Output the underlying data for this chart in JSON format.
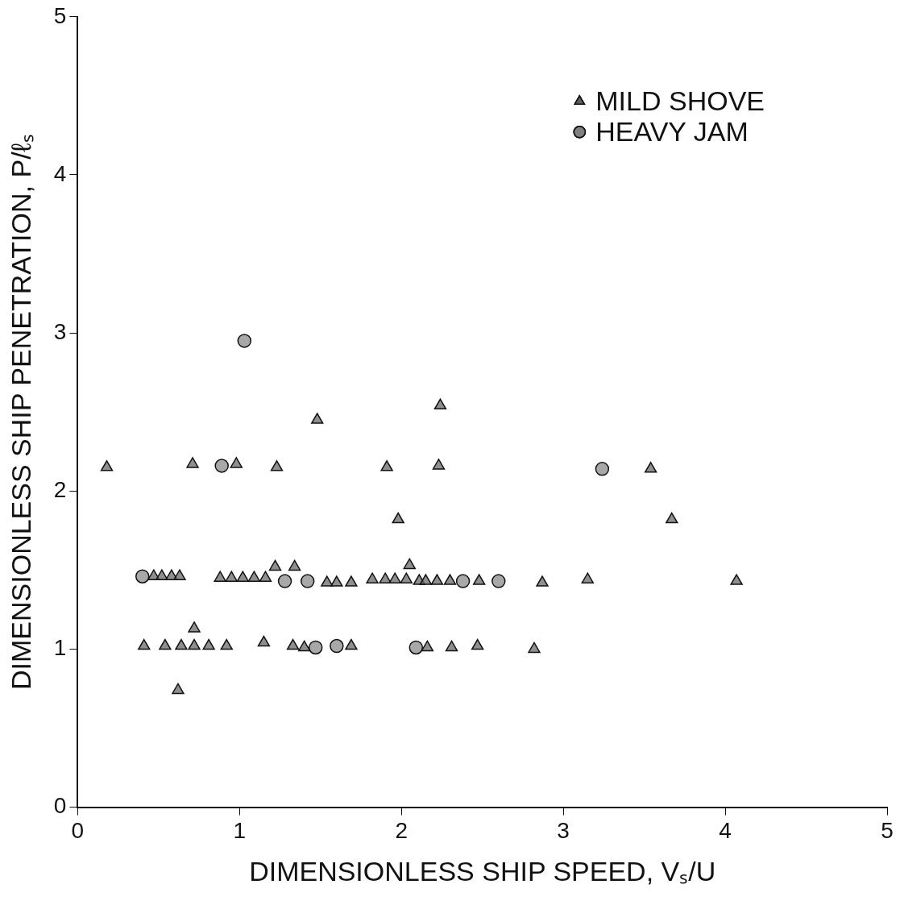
{
  "chart_data": {
    "type": "scatter",
    "xlabel": "DIMENSIONLESS SHIP SPEED, Vₛ/U",
    "ylabel": "DIMENSIONLESS SHIP PENETRATION, P/ℓₛ",
    "xlim": [
      0,
      5
    ],
    "xticks": [
      0,
      1,
      2,
      3,
      4,
      5
    ],
    "ylim": [
      0,
      5
    ],
    "yticks": [
      0,
      1,
      2,
      3,
      4,
      5
    ],
    "grid": false,
    "legend": "top right",
    "series": [
      {
        "name": "MILD SHOVE",
        "color": "#666666",
        "marker": "triangle",
        "x": [
          0.18,
          0.71,
          0.98,
          1.23,
          1.91,
          2.23,
          3.54,
          1.48,
          2.24,
          1.98,
          3.67,
          3.15,
          4.07,
          2.87,
          0.47,
          0.52,
          0.58,
          0.63,
          0.88,
          0.95,
          1.02,
          1.09,
          1.16,
          1.22,
          1.34,
          1.54,
          1.6,
          1.69,
          1.82,
          1.9,
          1.96,
          2.03,
          2.11,
          2.15,
          2.22,
          2.3,
          2.48,
          2.05,
          0.41,
          0.54,
          0.64,
          0.72,
          0.81,
          0.92,
          0.72,
          1.15,
          1.33,
          1.4,
          1.69,
          2.16,
          2.31,
          2.47,
          2.82,
          0.62
        ],
        "values": [
          2.15,
          2.17,
          2.17,
          2.15,
          2.15,
          2.16,
          2.14,
          2.45,
          2.54,
          1.82,
          1.82,
          1.44,
          1.43,
          1.42,
          1.46,
          1.46,
          1.46,
          1.46,
          1.45,
          1.45,
          1.45,
          1.45,
          1.45,
          1.52,
          1.52,
          1.42,
          1.42,
          1.42,
          1.44,
          1.44,
          1.44,
          1.44,
          1.43,
          1.43,
          1.43,
          1.43,
          1.43,
          1.53,
          1.02,
          1.02,
          1.02,
          1.02,
          1.02,
          1.02,
          1.13,
          1.04,
          1.02,
          1.01,
          1.02,
          1.01,
          1.01,
          1.02,
          1.0,
          0.74
        ]
      },
      {
        "name": "HEAVY JAM",
        "color": "#888888",
        "marker": "circle",
        "x": [
          1.03,
          0.89,
          3.24,
          0.4,
          1.28,
          1.42,
          2.38,
          2.6,
          1.47,
          1.6,
          2.09
        ],
        "values": [
          2.95,
          2.16,
          2.14,
          1.46,
          1.43,
          1.43,
          1.43,
          1.43,
          1.01,
          1.02,
          1.01
        ]
      }
    ]
  }
}
